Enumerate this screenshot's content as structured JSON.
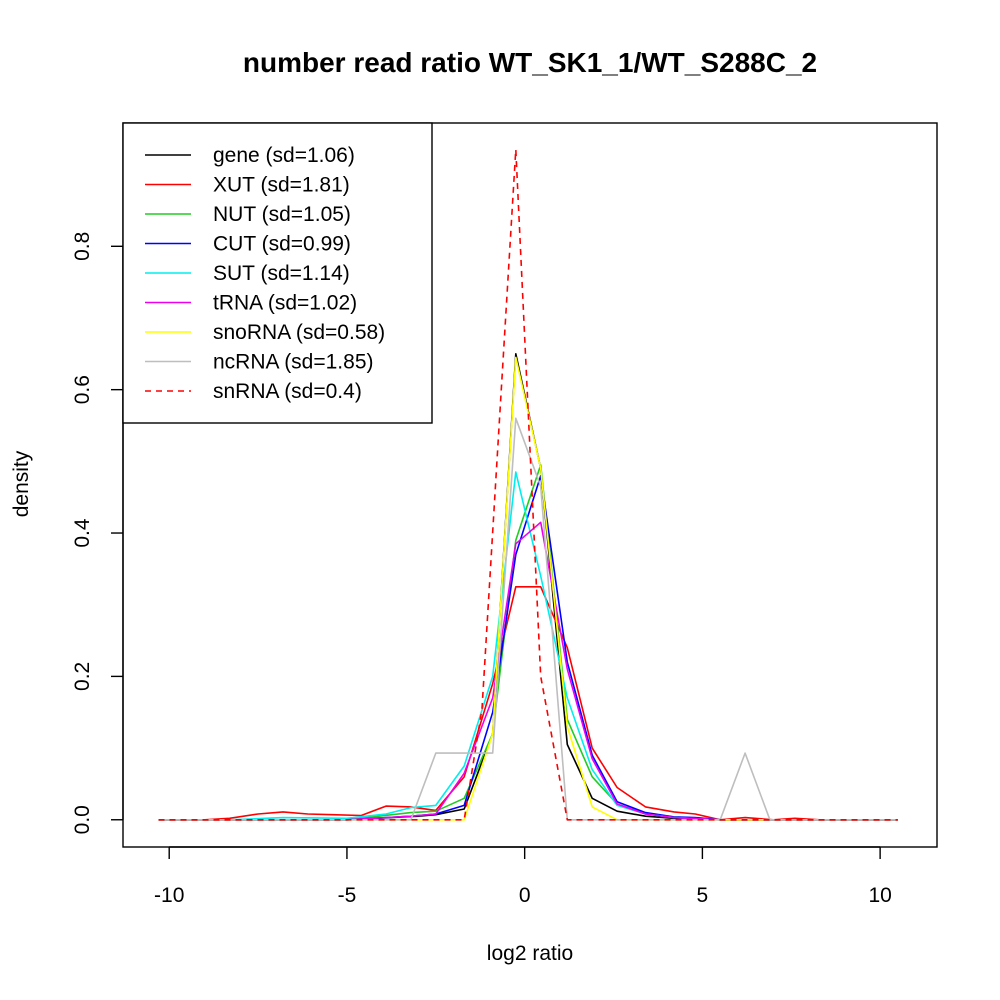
{
  "chart_data": {
    "type": "line",
    "title": "number read ratio WT_SK1_1/WT_S288C_2",
    "xlabel": "log2 ratio",
    "ylabel": "density",
    "xlim": [
      -11.3,
      11.6
    ],
    "ylim": [
      -0.038,
      0.972
    ],
    "xticks": [
      -10,
      -5,
      0,
      5,
      10
    ],
    "yticks": [
      0.0,
      0.2,
      0.4,
      0.6,
      0.8
    ],
    "grid": false,
    "legend_position": "top-left",
    "series": [
      {
        "name": "gene (sd=1.06)",
        "color": "#000000",
        "dash": "solid",
        "x": [
          -10.3,
          -8.3,
          -5.0,
          -3.0,
          -2.5,
          -1.7,
          -0.9,
          -0.25,
          0.45,
          1.2,
          1.9,
          2.6,
          3.4,
          4.2,
          5.5,
          7.5,
          10.5
        ],
        "y": [
          0,
          0,
          0,
          0.005,
          0.007,
          0.015,
          0.12,
          0.65,
          0.49,
          0.105,
          0.03,
          0.012,
          0.005,
          0.002,
          0,
          0,
          0
        ]
      },
      {
        "name": "XUT (sd=1.81)",
        "color": "#ff0000",
        "dash": "solid",
        "x": [
          -10.3,
          -9.0,
          -8.3,
          -7.5,
          -6.8,
          -6.1,
          -5.4,
          -4.6,
          -3.9,
          -3.2,
          -2.5,
          -1.7,
          -0.9,
          -0.25,
          0.45,
          1.2,
          1.9,
          2.6,
          3.4,
          4.2,
          4.8,
          5.5,
          6.2,
          7.0,
          7.6,
          8.3,
          10.5
        ],
        "y": [
          0,
          0,
          0.002,
          0.008,
          0.011,
          0.008,
          0.007,
          0.006,
          0.019,
          0.018,
          0.013,
          0.06,
          0.19,
          0.325,
          0.325,
          0.24,
          0.1,
          0.045,
          0.018,
          0.011,
          0.008,
          0,
          0.003,
          0,
          0.002,
          0,
          0
        ]
      },
      {
        "name": "NUT (sd=1.05)",
        "color": "#22cc22",
        "dash": "solid",
        "x": [
          -10.3,
          -7.5,
          -5.0,
          -3.2,
          -2.5,
          -1.7,
          -0.9,
          -0.25,
          0.45,
          1.2,
          1.9,
          2.6,
          3.4,
          4.2,
          5.5,
          7.5,
          10.5
        ],
        "y": [
          0,
          0,
          0,
          0.01,
          0.012,
          0.03,
          0.12,
          0.39,
          0.495,
          0.14,
          0.06,
          0.022,
          0.008,
          0.004,
          0,
          0,
          0
        ]
      },
      {
        "name": "CUT (sd=0.99)",
        "color": "#0000ff",
        "dash": "solid",
        "x": [
          -10.3,
          -7.5,
          -5.0,
          -3.2,
          -2.5,
          -1.7,
          -0.9,
          -0.25,
          0.45,
          1.2,
          1.9,
          2.6,
          3.4,
          4.2,
          4.8,
          5.5,
          7.5,
          10.5
        ],
        "y": [
          0,
          0,
          0,
          0.005,
          0.008,
          0.02,
          0.15,
          0.37,
          0.48,
          0.22,
          0.09,
          0.025,
          0.01,
          0.004,
          0.003,
          0,
          0,
          0
        ]
      },
      {
        "name": "SUT (sd=1.14)",
        "color": "#00eeee",
        "dash": "solid",
        "x": [
          -10.3,
          -8.3,
          -6.8,
          -5.0,
          -3.9,
          -3.2,
          -2.5,
          -1.7,
          -0.9,
          -0.25,
          0.45,
          1.2,
          1.9,
          2.6,
          3.4,
          4.2,
          5.5,
          7.5,
          10.5
        ],
        "y": [
          0,
          0,
          0.003,
          0.002,
          0.008,
          0.017,
          0.02,
          0.075,
          0.2,
          0.485,
          0.34,
          0.17,
          0.07,
          0.02,
          0.008,
          0.003,
          0,
          0,
          0
        ]
      },
      {
        "name": "tRNA (sd=1.02)",
        "color": "#ee00ee",
        "dash": "solid",
        "x": [
          -10.3,
          -7.5,
          -5.0,
          -3.2,
          -2.5,
          -1.7,
          -0.9,
          -0.25,
          0.45,
          1.2,
          1.9,
          2.6,
          3.4,
          4.2,
          5.5,
          7.5,
          10.5
        ],
        "y": [
          0,
          0,
          0,
          0.005,
          0.008,
          0.065,
          0.17,
          0.385,
          0.415,
          0.21,
          0.085,
          0.022,
          0.008,
          0.003,
          0,
          0,
          0
        ]
      },
      {
        "name": "snoRNA (sd=0.58)",
        "color": "#ffff00",
        "dash": "solid",
        "x": [
          -10.3,
          -5.0,
          -3.2,
          -1.7,
          -0.9,
          -0.25,
          0.45,
          1.2,
          1.9,
          2.6,
          5.5,
          10.5
        ],
        "y": [
          0,
          0,
          0,
          0,
          0.12,
          0.645,
          0.49,
          0.13,
          0.018,
          0,
          0,
          0
        ]
      },
      {
        "name": "ncRNA (sd=1.85)",
        "color": "#bebebe",
        "dash": "solid",
        "x": [
          -10.3,
          -3.2,
          -2.5,
          -1.7,
          -0.9,
          -0.25,
          0.45,
          1.2,
          1.9,
          2.6,
          4.8,
          5.5,
          6.2,
          6.9,
          10.5
        ],
        "y": [
          0,
          0,
          0.093,
          0.093,
          0.093,
          0.56,
          0.465,
          0,
          0,
          0,
          0,
          0,
          0.093,
          0,
          0
        ]
      },
      {
        "name": "snRNA (sd=0.4)",
        "color": "#ff0000",
        "dash": "dashed",
        "x": [
          -10.3,
          -1.7,
          -1.2,
          -0.25,
          0.45,
          1.2,
          10.5
        ],
        "y": [
          0,
          0,
          0.155,
          0.935,
          0.2,
          0,
          0
        ]
      }
    ]
  }
}
